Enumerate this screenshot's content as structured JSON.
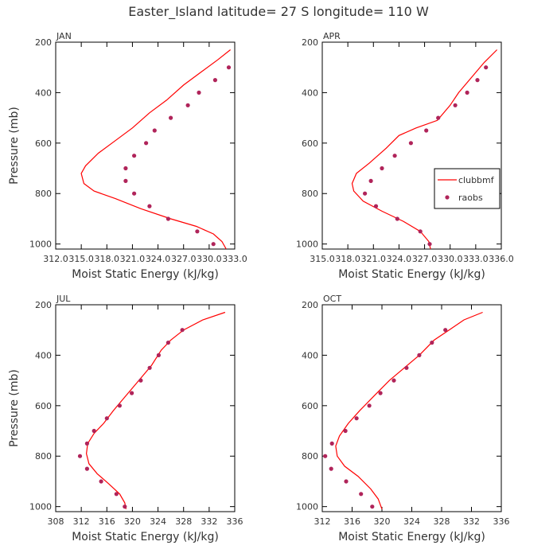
{
  "title": "Easter_Island   latitude= 27 S longitude= 110 W",
  "colors": {
    "model": "#ff0000",
    "obs": "#b0245a",
    "axis": "#000000",
    "text": "#333333"
  },
  "legend": {
    "model_label": "clubbmf",
    "obs_label": "raobs"
  },
  "chart_data": [
    {
      "type": "line",
      "panel_label": "JAN",
      "xlabel": "Moist Static Energy (kJ/kg)",
      "ylabel": "Pressure (mb)",
      "xlim": [
        312.0,
        333.0
      ],
      "ylim": [
        1020,
        200
      ],
      "xticks": [
        312.0,
        315.0,
        318.0,
        321.0,
        324.0,
        327.0,
        330.0,
        333.0
      ],
      "xtick_labels": [
        "312.0",
        "315.0",
        "318.0",
        "321.0",
        "324.0",
        "327.0",
        "330.0",
        "333.0"
      ],
      "yticks": [
        200,
        400,
        600,
        800,
        1000
      ],
      "ytick_labels": [
        "200",
        "400",
        "600",
        "800",
        "1000"
      ],
      "series": [
        {
          "name": "clubbmf",
          "kind": "line",
          "x": [
            332.5,
            331.0,
            329.0,
            327.0,
            325.0,
            323.0,
            321.0,
            319.0,
            317.0,
            315.5,
            315.0,
            315.3,
            316.5,
            319.0,
            322.0,
            325.5,
            328.5,
            330.5,
            331.5,
            332.0
          ],
          "y": [
            230,
            270,
            320,
            370,
            430,
            480,
            540,
            590,
            640,
            690,
            720,
            760,
            790,
            820,
            860,
            900,
            930,
            960,
            990,
            1020
          ]
        },
        {
          "name": "raobs",
          "kind": "scatter",
          "x": [
            332.3,
            330.7,
            328.8,
            327.5,
            325.5,
            323.6,
            322.6,
            321.2,
            320.2,
            320.2,
            321.2,
            323.0,
            325.2,
            328.6,
            330.5
          ],
          "y": [
            300,
            350,
            400,
            450,
            500,
            550,
            600,
            650,
            700,
            750,
            800,
            850,
            900,
            950,
            1000
          ]
        }
      ]
    },
    {
      "type": "line",
      "panel_label": "APR",
      "xlabel": "Moist Static Energy (kJ/kg)",
      "ylabel": "",
      "xlim": [
        315.0,
        336.0
      ],
      "ylim": [
        1020,
        200
      ],
      "xticks": [
        315.0,
        318.0,
        321.0,
        324.0,
        327.0,
        330.0,
        333.0,
        336.0
      ],
      "xtick_labels": [
        "315.0",
        "318.0",
        "321.0",
        "324.0",
        "327.0",
        "330.0",
        "333.0",
        "336.0"
      ],
      "yticks": [
        200,
        400,
        600,
        800,
        1000
      ],
      "ytick_labels": [
        "200",
        "400",
        "600",
        "800",
        "1000"
      ],
      "legend_position": "right-center",
      "series": [
        {
          "name": "clubbmf",
          "kind": "line",
          "x": [
            335.5,
            334.0,
            332.5,
            331.0,
            330.0,
            328.5,
            326.0,
            324.0,
            322.5,
            320.5,
            319.0,
            318.5,
            318.7,
            319.8,
            322.0,
            324.5,
            326.5,
            327.5,
            327.7
          ],
          "y": [
            230,
            280,
            340,
            400,
            450,
            510,
            540,
            570,
            620,
            680,
            720,
            760,
            790,
            830,
            870,
            910,
            950,
            990,
            1020
          ]
        },
        {
          "name": "raobs",
          "kind": "scatter",
          "x": [
            334.2,
            333.2,
            332.0,
            330.6,
            328.6,
            327.2,
            325.4,
            323.5,
            322.0,
            320.7,
            320.0,
            321.3,
            323.8,
            326.5,
            327.6
          ],
          "y": [
            300,
            350,
            400,
            450,
            500,
            550,
            600,
            650,
            700,
            750,
            800,
            850,
            900,
            950,
            1000
          ]
        }
      ]
    },
    {
      "type": "line",
      "panel_label": "JUL",
      "xlabel": "Moist Static Energy (kJ/kg)",
      "ylabel": "Pressure (mb)",
      "xlim": [
        308,
        336
      ],
      "ylim": [
        1020,
        200
      ],
      "xticks": [
        308,
        312,
        316,
        320,
        324,
        328,
        332,
        336
      ],
      "xtick_labels": [
        "308",
        "312",
        "316",
        "320",
        "324",
        "328",
        "332",
        "336"
      ],
      "yticks": [
        200,
        400,
        600,
        800,
        1000
      ],
      "ytick_labels": [
        "200",
        "400",
        "600",
        "800",
        "1000"
      ],
      "series": [
        {
          "name": "clubbmf",
          "kind": "line",
          "x": [
            334.5,
            331.0,
            328.0,
            326.0,
            324.5,
            323.0,
            321.0,
            319.0,
            317.0,
            315.5,
            314.0,
            313.0,
            312.8,
            313.2,
            314.5,
            316.3,
            318.0,
            318.8,
            319.0
          ],
          "y": [
            230,
            260,
            300,
            340,
            380,
            440,
            500,
            560,
            620,
            670,
            710,
            750,
            790,
            830,
            870,
            910,
            950,
            985,
            1010
          ]
        },
        {
          "name": "raobs",
          "kind": "scatter",
          "x": [
            327.8,
            325.6,
            324.1,
            322.7,
            321.3,
            319.9,
            318.0,
            316.0,
            314.0,
            312.9,
            311.8,
            312.9,
            315.1,
            317.5,
            318.8
          ],
          "y": [
            300,
            350,
            400,
            450,
            500,
            550,
            600,
            650,
            700,
            750,
            800,
            850,
            900,
            950,
            1000
          ]
        }
      ]
    },
    {
      "type": "line",
      "panel_label": "OCT",
      "xlabel": "Moist Static Energy (kJ/kg)",
      "ylabel": "",
      "xlim": [
        312,
        336
      ],
      "ylim": [
        1020,
        200
      ],
      "xticks": [
        312,
        316,
        320,
        324,
        328,
        332,
        336
      ],
      "xtick_labels": [
        "312",
        "316",
        "320",
        "324",
        "328",
        "332",
        "336"
      ],
      "yticks": [
        200,
        400,
        600,
        800,
        1000
      ],
      "ytick_labels": [
        "200",
        "400",
        "600",
        "800",
        "1000"
      ],
      "series": [
        {
          "name": "clubbmf",
          "kind": "line",
          "x": [
            333.5,
            331.0,
            329.0,
            327.0,
            325.0,
            323.0,
            321.0,
            319.0,
            317.0,
            315.5,
            314.3,
            313.8,
            314.0,
            315.0,
            316.8,
            318.5,
            319.5,
            320.0
          ],
          "y": [
            230,
            260,
            300,
            340,
            400,
            450,
            500,
            560,
            620,
            670,
            720,
            760,
            800,
            840,
            880,
            930,
            970,
            1010
          ]
        },
        {
          "name": "raobs",
          "kind": "scatter",
          "x": [
            328.5,
            326.7,
            325.0,
            323.3,
            321.6,
            319.8,
            318.3,
            316.6,
            315.1,
            313.3,
            312.4,
            313.2,
            315.2,
            317.2,
            318.7
          ],
          "y": [
            300,
            350,
            400,
            450,
            500,
            550,
            600,
            650,
            700,
            750,
            800,
            850,
            900,
            950,
            1000
          ]
        }
      ]
    }
  ]
}
